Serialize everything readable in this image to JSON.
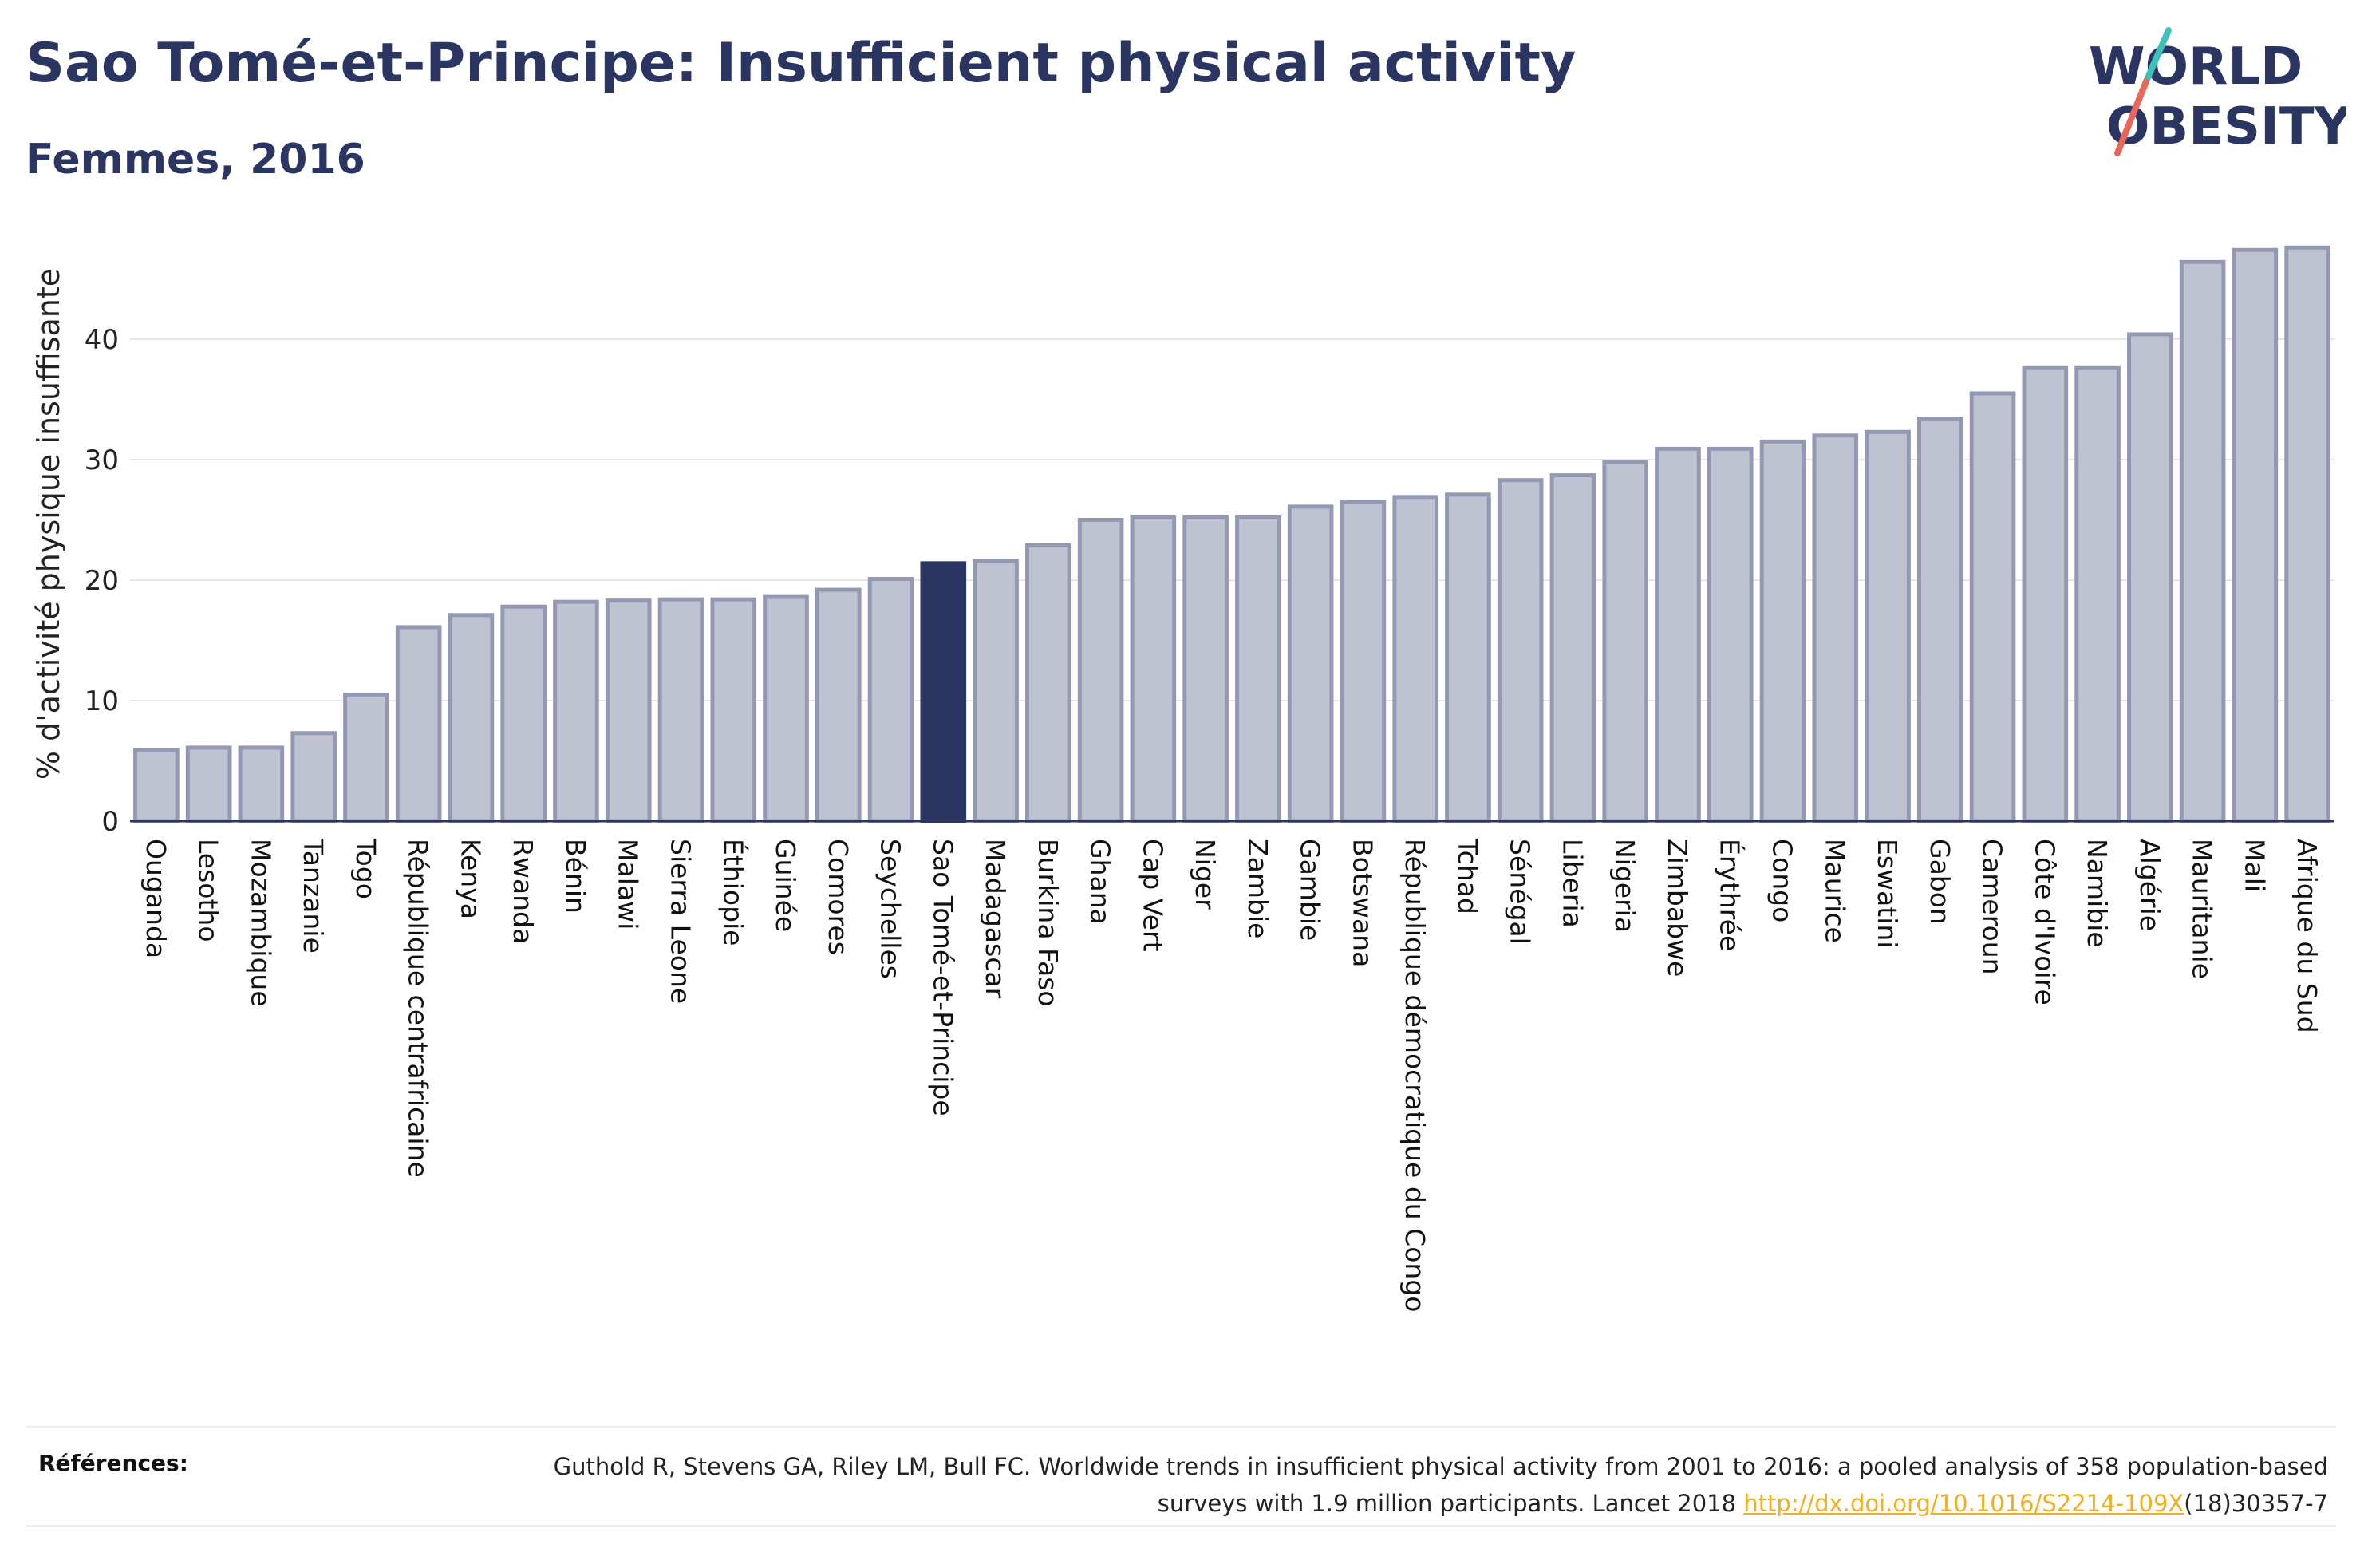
{
  "header": {
    "title": "Sao Tomé-et-Principe: Insufficient physical activity",
    "subtitle": "Femmes, 2016"
  },
  "logo": {
    "line1": "WORLD",
    "line2": "OBESITY"
  },
  "chart_data": {
    "type": "bar",
    "ylabel": "% d'activité physique insuffisante",
    "ylim": [
      0,
      50
    ],
    "yticks": [
      0,
      10,
      20,
      30,
      40
    ],
    "grid": true,
    "highlight": "Sao Tomé-et-Principe",
    "colors": {
      "bar": "#bfc3d1",
      "bar_edge": "#9399b2",
      "highlight": "#2b3562",
      "axis": "#2b3562",
      "grid": "#e6e6e6"
    },
    "categories": [
      "Ouganda",
      "Lesotho",
      "Mozambique",
      "Tanzanie",
      "Togo",
      "République centrafricaine",
      "Kenya",
      "Rwanda",
      "Bénin",
      "Malawi",
      "Sierra Leone",
      "Éthiopie",
      "Guinée",
      "Comores",
      "Seychelles",
      "Sao Tomé-et-Principe",
      "Madagascar",
      "Burkina Faso",
      "Ghana",
      "Cap Vert",
      "Niger",
      "Zambie",
      "Gambie",
      "Botswana",
      "République démocratique du Congo",
      "Tchad",
      "Sénégal",
      "Liberia",
      "Nigeria",
      "Zimbabwe",
      "Érythrée",
      "Congo",
      "Maurice",
      "Eswatini",
      "Gabon",
      "Cameroun",
      "Côte d'Ivoire",
      "Namibie",
      "Algérie",
      "Mauritanie",
      "Mali",
      "Afrique du Sud"
    ],
    "values": [
      5.9,
      6.1,
      6.1,
      7.3,
      10.5,
      16.1,
      17.1,
      17.8,
      18.2,
      18.3,
      18.4,
      18.4,
      18.6,
      19.2,
      20.1,
      21.4,
      21.6,
      22.9,
      25.0,
      25.2,
      25.2,
      25.2,
      26.1,
      26.5,
      26.9,
      27.1,
      28.3,
      28.7,
      29.8,
      30.9,
      30.9,
      31.5,
      32.0,
      32.3,
      33.4,
      35.5,
      37.6,
      37.6,
      40.4,
      46.4,
      47.4,
      47.6
    ]
  },
  "references": {
    "label": "Références:",
    "text_before": "Guthold R, Stevens GA, Riley LM, Bull FC. Worldwide trends in insufficient physical activity from 2001 to 2016: a pooled analysis of 358 population-based surveys with 1.9 million participants. Lancet 2018 ",
    "link": "http://dx.doi.org/10.1016/S2214-109X",
    "text_after": "(18)30357-7"
  }
}
